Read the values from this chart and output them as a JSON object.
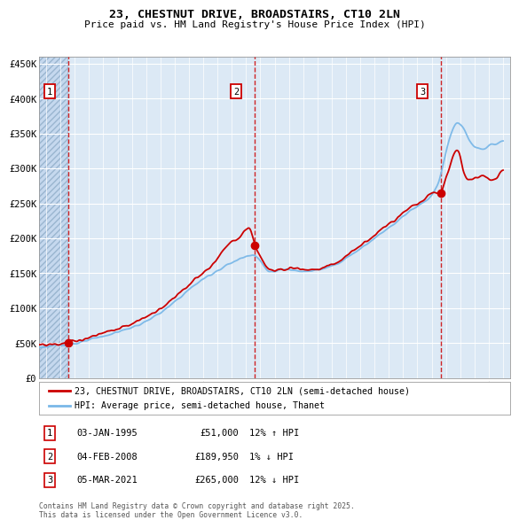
{
  "title": "23, CHESTNUT DRIVE, BROADSTAIRS, CT10 2LN",
  "subtitle": "Price paid vs. HM Land Registry's House Price Index (HPI)",
  "ylim": [
    0,
    460000
  ],
  "yticks": [
    0,
    50000,
    100000,
    150000,
    200000,
    250000,
    300000,
    350000,
    400000,
    450000
  ],
  "ytick_labels": [
    "£0",
    "£50K",
    "£100K",
    "£150K",
    "£200K",
    "£250K",
    "£300K",
    "£350K",
    "£400K",
    "£450K"
  ],
  "background_color": "#dce9f5",
  "grid_color": "#ffffff",
  "sale_color": "#cc0000",
  "hpi_color": "#7ab8e8",
  "sale_label": "23, CHESTNUT DRIVE, BROADSTAIRS, CT10 2LN (semi-detached house)",
  "hpi_label": "HPI: Average price, semi-detached house, Thanet",
  "transactions": [
    {
      "num": 1,
      "date_str": "03-JAN-1995",
      "price": 51000,
      "hpi_pct": "12%",
      "hpi_dir": "↑"
    },
    {
      "num": 2,
      "date_str": "04-FEB-2008",
      "price": 189950,
      "hpi_pct": "1%",
      "hpi_dir": "↓"
    },
    {
      "num": 3,
      "date_str": "05-MAR-2021",
      "price": 265000,
      "hpi_pct": "12%",
      "hpi_dir": "↓"
    }
  ],
  "transaction_years": [
    1995.03,
    2008.09,
    2021.17
  ],
  "transaction_prices": [
    51000,
    189950,
    265000
  ],
  "footnote": "Contains HM Land Registry data © Crown copyright and database right 2025.\nThis data is licensed under the Open Government Licence v3.0.",
  "xmin": 1993.0,
  "xmax": 2026.0,
  "hpi_keypoints_t": [
    1993.0,
    1994.0,
    1995.0,
    1996.0,
    1997.0,
    1998.0,
    1999.0,
    2000.0,
    2001.0,
    2002.0,
    2003.0,
    2004.0,
    2005.0,
    2006.0,
    2007.0,
    2007.5,
    2008.0,
    2008.5,
    2009.0,
    2009.5,
    2010.0,
    2011.0,
    2012.0,
    2013.0,
    2014.0,
    2015.0,
    2016.0,
    2017.0,
    2018.0,
    2019.0,
    2020.0,
    2020.5,
    2021.0,
    2021.3,
    2021.7,
    2022.0,
    2022.3,
    2022.5,
    2022.8,
    2023.0,
    2023.5,
    2024.0,
    2024.5,
    2025.0,
    2025.5
  ],
  "hpi_keypoints_v": [
    44000,
    46000,
    48000,
    51000,
    57000,
    63000,
    69000,
    76000,
    87000,
    100000,
    118000,
    135000,
    148000,
    160000,
    170000,
    175000,
    178000,
    168000,
    153000,
    152000,
    155000,
    155000,
    153000,
    156000,
    165000,
    178000,
    193000,
    208000,
    223000,
    240000,
    252000,
    262000,
    278000,
    305000,
    340000,
    358000,
    368000,
    365000,
    355000,
    345000,
    328000,
    328000,
    332000,
    335000,
    340000
  ],
  "red_keypoints_t": [
    1993.0,
    1994.5,
    1995.03,
    1996.0,
    1997.0,
    1998.0,
    1999.0,
    2000.0,
    2001.0,
    2002.0,
    2003.0,
    2004.0,
    2005.0,
    2005.5,
    2006.0,
    2006.5,
    2007.0,
    2007.3,
    2007.5,
    2007.8,
    2008.09,
    2008.5,
    2009.0,
    2009.5,
    2010.0,
    2011.0,
    2012.0,
    2013.0,
    2014.0,
    2015.0,
    2016.0,
    2017.0,
    2018.0,
    2019.0,
    2020.0,
    2020.5,
    2021.17,
    2021.4,
    2021.7,
    2022.0,
    2022.3,
    2022.5,
    2022.7,
    2023.0,
    2023.5,
    2024.0,
    2024.5,
    2025.0,
    2025.5
  ],
  "red_keypoints_v": [
    47000,
    49000,
    51000,
    55000,
    61000,
    67000,
    73000,
    82000,
    93000,
    107000,
    125000,
    142000,
    158000,
    172000,
    185000,
    195000,
    200000,
    208000,
    213000,
    215000,
    189950,
    175000,
    155000,
    153000,
    158000,
    158000,
    155000,
    158000,
    167000,
    182000,
    197000,
    213000,
    228000,
    244000,
    256000,
    265000,
    265000,
    280000,
    300000,
    318000,
    330000,
    320000,
    295000,
    285000,
    285000,
    290000,
    285000,
    285000,
    300000
  ]
}
